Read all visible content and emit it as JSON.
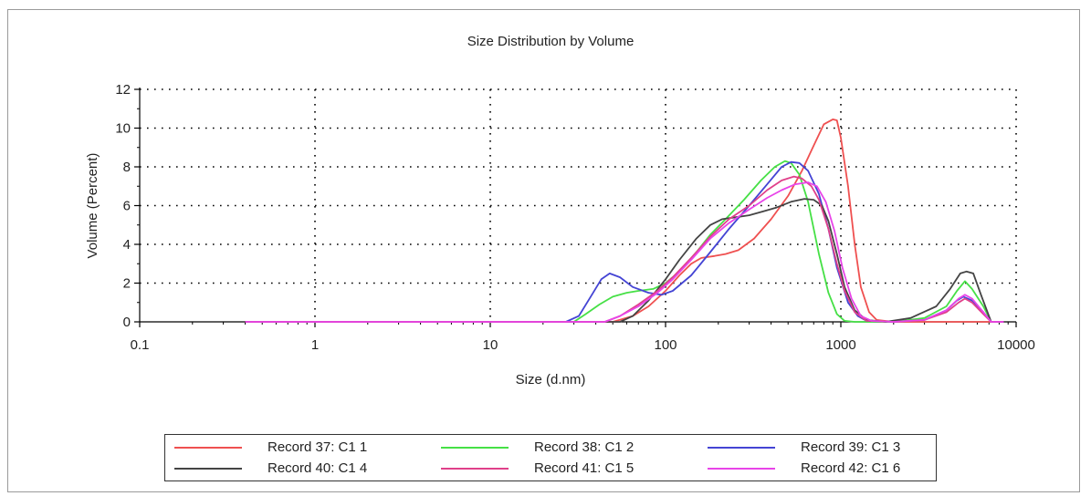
{
  "chart_data": {
    "type": "line",
    "title": "Size Distribution by Volume",
    "xlabel": "Size (d.nm)",
    "ylabel": "Volume (Percent)",
    "xscale": "log",
    "xlim": [
      0.1,
      10000
    ],
    "ylim": [
      0,
      12
    ],
    "x_ticks": [
      "0.1",
      "1",
      "10",
      "100",
      "1000",
      "10000"
    ],
    "y_ticks": [
      "0",
      "2",
      "4",
      "6",
      "8",
      "10",
      "12"
    ],
    "grid": true,
    "legend_position": "bottom",
    "series": [
      {
        "name": "Record 37: C1 1",
        "color": "#ef5050",
        "points": [
          [
            0.4,
            0
          ],
          [
            50,
            0
          ],
          [
            65,
            0.3
          ],
          [
            80,
            0.8
          ],
          [
            100,
            1.6
          ],
          [
            120,
            2.4
          ],
          [
            140,
            3.0
          ],
          [
            160,
            3.3
          ],
          [
            190,
            3.4
          ],
          [
            220,
            3.5
          ],
          [
            260,
            3.7
          ],
          [
            320,
            4.3
          ],
          [
            400,
            5.3
          ],
          [
            500,
            6.5
          ],
          [
            600,
            7.8
          ],
          [
            700,
            9.1
          ],
          [
            800,
            10.2
          ],
          [
            900,
            10.45
          ],
          [
            950,
            10.4
          ],
          [
            1000,
            9.5
          ],
          [
            1100,
            7.0
          ],
          [
            1200,
            4.0
          ],
          [
            1300,
            1.8
          ],
          [
            1450,
            0.5
          ],
          [
            1600,
            0.1
          ],
          [
            2000,
            0
          ],
          [
            8500,
            0
          ]
        ]
      },
      {
        "name": "Record 38: C1 2",
        "color": "#46e046",
        "points": [
          [
            0.4,
            0
          ],
          [
            30,
            0
          ],
          [
            35,
            0.4
          ],
          [
            42,
            0.9
          ],
          [
            50,
            1.3
          ],
          [
            60,
            1.5
          ],
          [
            70,
            1.6
          ],
          [
            85,
            1.7
          ],
          [
            100,
            2.0
          ],
          [
            120,
            2.6
          ],
          [
            150,
            3.6
          ],
          [
            180,
            4.5
          ],
          [
            220,
            5.3
          ],
          [
            280,
            6.3
          ],
          [
            350,
            7.3
          ],
          [
            420,
            8.0
          ],
          [
            480,
            8.3
          ],
          [
            520,
            8.2
          ],
          [
            580,
            7.6
          ],
          [
            650,
            6.2
          ],
          [
            750,
            3.5
          ],
          [
            850,
            1.5
          ],
          [
            950,
            0.4
          ],
          [
            1050,
            0.05
          ],
          [
            1200,
            0
          ],
          [
            2000,
            0
          ],
          [
            3000,
            0.2
          ],
          [
            4000,
            0.8
          ],
          [
            4600,
            1.6
          ],
          [
            5100,
            2.1
          ],
          [
            5600,
            1.7
          ],
          [
            6500,
            0.8
          ],
          [
            7200,
            0
          ],
          [
            8500,
            0
          ]
        ]
      },
      {
        "name": "Record 39: C1 3",
        "color": "#4444d4",
        "points": [
          [
            0.4,
            0
          ],
          [
            27,
            0
          ],
          [
            32,
            0.3
          ],
          [
            38,
            1.4
          ],
          [
            43,
            2.2
          ],
          [
            48,
            2.5
          ],
          [
            55,
            2.3
          ],
          [
            65,
            1.8
          ],
          [
            80,
            1.5
          ],
          [
            95,
            1.4
          ],
          [
            110,
            1.6
          ],
          [
            140,
            2.4
          ],
          [
            180,
            3.6
          ],
          [
            230,
            4.8
          ],
          [
            300,
            6.0
          ],
          [
            380,
            7.1
          ],
          [
            460,
            8.0
          ],
          [
            520,
            8.25
          ],
          [
            580,
            8.2
          ],
          [
            650,
            7.8
          ],
          [
            750,
            6.6
          ],
          [
            850,
            4.8
          ],
          [
            950,
            2.8
          ],
          [
            1100,
            1.0
          ],
          [
            1250,
            0.3
          ],
          [
            1400,
            0.05
          ],
          [
            2000,
            0
          ],
          [
            3000,
            0.1
          ],
          [
            4000,
            0.6
          ],
          [
            4600,
            1.1
          ],
          [
            5000,
            1.3
          ],
          [
            5600,
            1.1
          ],
          [
            6500,
            0.5
          ],
          [
            7200,
            0
          ],
          [
            8500,
            0
          ]
        ]
      },
      {
        "name": "Record 40: C1 4",
        "color": "#444444",
        "points": [
          [
            0.4,
            0
          ],
          [
            55,
            0
          ],
          [
            65,
            0.3
          ],
          [
            80,
            1.1
          ],
          [
            100,
            2.2
          ],
          [
            120,
            3.2
          ],
          [
            150,
            4.3
          ],
          [
            180,
            5.0
          ],
          [
            210,
            5.3
          ],
          [
            250,
            5.4
          ],
          [
            300,
            5.5
          ],
          [
            360,
            5.7
          ],
          [
            430,
            5.9
          ],
          [
            520,
            6.2
          ],
          [
            620,
            6.35
          ],
          [
            700,
            6.3
          ],
          [
            780,
            6.0
          ],
          [
            850,
            5.2
          ],
          [
            950,
            3.5
          ],
          [
            1050,
            1.8
          ],
          [
            1200,
            0.6
          ],
          [
            1400,
            0.1
          ],
          [
            1800,
            0
          ],
          [
            2500,
            0.2
          ],
          [
            3500,
            0.8
          ],
          [
            4200,
            1.7
          ],
          [
            4800,
            2.5
          ],
          [
            5200,
            2.6
          ],
          [
            5700,
            2.5
          ],
          [
            6300,
            1.4
          ],
          [
            7200,
            0
          ],
          [
            8500,
            0
          ]
        ]
      },
      {
        "name": "Record 41: C1 5",
        "color": "#e0408a",
        "points": [
          [
            0.4,
            0
          ],
          [
            45,
            0
          ],
          [
            55,
            0.3
          ],
          [
            70,
            0.9
          ],
          [
            90,
            1.6
          ],
          [
            110,
            2.3
          ],
          [
            140,
            3.3
          ],
          [
            180,
            4.4
          ],
          [
            230,
            5.3
          ],
          [
            300,
            6.0
          ],
          [
            380,
            6.8
          ],
          [
            460,
            7.3
          ],
          [
            540,
            7.5
          ],
          [
            600,
            7.4
          ],
          [
            680,
            7.0
          ],
          [
            750,
            6.3
          ],
          [
            850,
            4.8
          ],
          [
            950,
            3.0
          ],
          [
            1050,
            1.6
          ],
          [
            1200,
            0.5
          ],
          [
            1400,
            0.05
          ],
          [
            2000,
            0
          ],
          [
            3000,
            0.1
          ],
          [
            4000,
            0.5
          ],
          [
            4700,
            1.0
          ],
          [
            5100,
            1.2
          ],
          [
            5600,
            1.0
          ],
          [
            6500,
            0.4
          ],
          [
            7200,
            0
          ],
          [
            8500,
            0
          ]
        ]
      },
      {
        "name": "Record 42: C1 6",
        "color": "#e844e8",
        "points": [
          [
            0.4,
            0
          ],
          [
            45,
            0
          ],
          [
            55,
            0.3
          ],
          [
            70,
            0.8
          ],
          [
            90,
            1.5
          ],
          [
            110,
            2.2
          ],
          [
            140,
            3.2
          ],
          [
            180,
            4.3
          ],
          [
            230,
            5.1
          ],
          [
            300,
            5.8
          ],
          [
            380,
            6.4
          ],
          [
            460,
            6.8
          ],
          [
            550,
            7.1
          ],
          [
            650,
            7.2
          ],
          [
            730,
            7.0
          ],
          [
            820,
            6.2
          ],
          [
            920,
            4.7
          ],
          [
            1020,
            2.8
          ],
          [
            1150,
            1.2
          ],
          [
            1300,
            0.3
          ],
          [
            1500,
            0.05
          ],
          [
            2000,
            0
          ],
          [
            3000,
            0.1
          ],
          [
            4000,
            0.6
          ],
          [
            4700,
            1.2
          ],
          [
            5100,
            1.4
          ],
          [
            5600,
            1.2
          ],
          [
            6500,
            0.5
          ],
          [
            7200,
            0
          ],
          [
            8500,
            0
          ]
        ]
      }
    ]
  }
}
